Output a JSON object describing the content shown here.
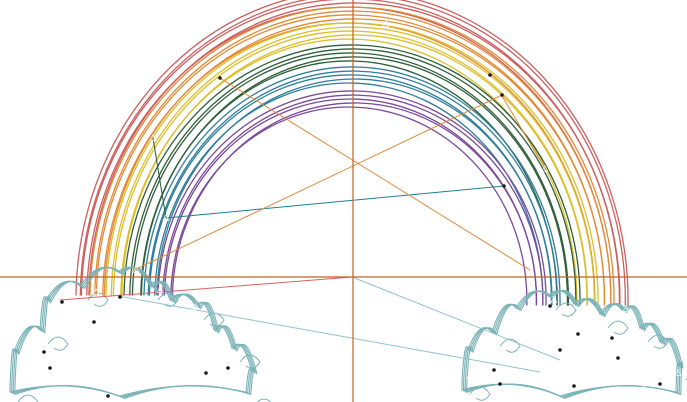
{
  "colors": {
    "background": "#ffffff",
    "crosshair": "#c0651f",
    "red": "#cc5f5f",
    "orange": "#e38a35",
    "yellow": "#dcc02a",
    "green": "#2f5e3a",
    "blue": "#2f7f9c",
    "purple": "#7c4a9a",
    "cloud": "#7ab3b8",
    "guide_teal": "#1f7f96",
    "guide_orange": "#e08a3a",
    "guide_red": "#d9625e",
    "guide_cyan": "#8ec4c8",
    "guide_dark": "#285a3a",
    "marker": "#1a1a1a"
  },
  "rainbow_bands": [
    {
      "name": "red",
      "color_key": "red"
    },
    {
      "name": "orange",
      "color_key": "orange"
    },
    {
      "name": "yellow",
      "color_key": "yellow"
    },
    {
      "name": "green",
      "color_key": "green"
    },
    {
      "name": "blue",
      "color_key": "blue"
    },
    {
      "name": "purple",
      "color_key": "purple"
    }
  ],
  "icons": {
    "triangle_marker": "triangle-marker-icon",
    "dot_marker": "dot-marker-icon"
  }
}
